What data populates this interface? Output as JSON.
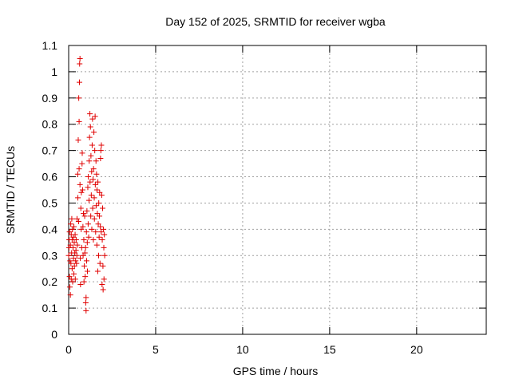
{
  "chart_data": {
    "type": "scatter",
    "title": "Day 152 of 2025, SRMTID for receiver wgba",
    "xlabel": "GPS time / hours",
    "ylabel": "SRMTID / TECUs",
    "xlim": [
      0,
      24
    ],
    "ylim": [
      0,
      1.1
    ],
    "xticks": [
      0,
      5,
      10,
      15,
      20
    ],
    "xtick_labels": [
      "0",
      "5",
      "10",
      "15",
      "20"
    ],
    "yticks": [
      0,
      0.1,
      0.2,
      0.3,
      0.4,
      0.5,
      0.6,
      0.7,
      0.8,
      0.9,
      1.0,
      1.1
    ],
    "ytick_labels": [
      "0",
      "0.1",
      "0.2",
      "0.3",
      "0.4",
      "0.5",
      "0.6",
      "0.7",
      "0.8",
      "0.9",
      "1",
      "1.1"
    ],
    "grid": true,
    "marker": "+",
    "color": "#e00000",
    "series": [
      {
        "name": "SRMTID",
        "points": [
          [
            0.0,
            0.3
          ],
          [
            0.02,
            0.33
          ],
          [
            0.03,
            0.36
          ],
          [
            0.05,
            0.22
          ],
          [
            0.05,
            0.39
          ],
          [
            0.07,
            0.18
          ],
          [
            0.08,
            0.28
          ],
          [
            0.1,
            0.15
          ],
          [
            0.1,
            0.34
          ],
          [
            0.12,
            0.42
          ],
          [
            0.13,
            0.27
          ],
          [
            0.15,
            0.38
          ],
          [
            0.15,
            0.21
          ],
          [
            0.17,
            0.31
          ],
          [
            0.18,
            0.44
          ],
          [
            0.2,
            0.36
          ],
          [
            0.2,
            0.25
          ],
          [
            0.22,
            0.4
          ],
          [
            0.23,
            0.2
          ],
          [
            0.25,
            0.33
          ],
          [
            0.27,
            0.37
          ],
          [
            0.28,
            0.29
          ],
          [
            0.3,
            0.41
          ],
          [
            0.3,
            0.23
          ],
          [
            0.32,
            0.35
          ],
          [
            0.33,
            0.26
          ],
          [
            0.35,
            0.31
          ],
          [
            0.37,
            0.38
          ],
          [
            0.38,
            0.21
          ],
          [
            0.4,
            0.28
          ],
          [
            0.42,
            0.32
          ],
          [
            0.43,
            0.36
          ],
          [
            0.45,
            0.27
          ],
          [
            0.47,
            0.3
          ],
          [
            0.48,
            0.44
          ],
          [
            0.5,
            0.34
          ],
          [
            0.52,
            0.61
          ],
          [
            0.53,
            0.52
          ],
          [
            0.55,
            0.74
          ],
          [
            0.57,
            0.43
          ],
          [
            0.58,
            0.9
          ],
          [
            0.6,
            0.63
          ],
          [
            0.6,
            0.81
          ],
          [
            0.62,
            0.96
          ],
          [
            0.63,
            1.03
          ],
          [
            0.65,
            1.05
          ],
          [
            0.65,
            0.57
          ],
          [
            0.67,
            0.29
          ],
          [
            0.68,
            0.19
          ],
          [
            0.7,
            0.48
          ],
          [
            0.72,
            0.4
          ],
          [
            0.73,
            0.54
          ],
          [
            0.75,
            0.33
          ],
          [
            0.77,
            0.65
          ],
          [
            0.78,
            0.69
          ],
          [
            0.8,
            0.55
          ],
          [
            0.82,
            0.41
          ],
          [
            0.83,
            0.3
          ],
          [
            0.85,
            0.46
          ],
          [
            0.87,
            0.36
          ],
          [
            0.88,
            0.2
          ],
          [
            0.9,
            0.26
          ],
          [
            0.92,
            0.45
          ],
          [
            0.93,
            0.31
          ],
          [
            0.95,
            0.22
          ],
          [
            0.97,
            0.33
          ],
          [
            0.98,
            0.12
          ],
          [
            1.0,
            0.09
          ],
          [
            1.0,
            0.14
          ],
          [
            1.02,
            0.39
          ],
          [
            1.03,
            0.28
          ],
          [
            1.05,
            0.47
          ],
          [
            1.07,
            0.35
          ],
          [
            1.08,
            0.24
          ],
          [
            1.1,
            0.56
          ],
          [
            1.12,
            0.42
          ],
          [
            1.13,
            0.6
          ],
          [
            1.15,
            0.37
          ],
          [
            1.17,
            0.51
          ],
          [
            1.18,
            0.66
          ],
          [
            1.2,
            0.75
          ],
          [
            1.22,
            0.84
          ],
          [
            1.23,
            0.58
          ],
          [
            1.25,
            0.79
          ],
          [
            1.27,
            0.45
          ],
          [
            1.28,
            0.68
          ],
          [
            1.3,
            0.53
          ],
          [
            1.32,
            0.62
          ],
          [
            1.33,
            0.4
          ],
          [
            1.35,
            0.72
          ],
          [
            1.37,
            0.82
          ],
          [
            1.38,
            0.48
          ],
          [
            1.4,
            0.59
          ],
          [
            1.42,
            0.36
          ],
          [
            1.43,
            0.63
          ],
          [
            1.45,
            0.77
          ],
          [
            1.47,
            0.52
          ],
          [
            1.48,
            0.44
          ],
          [
            1.5,
            0.7
          ],
          [
            1.52,
            0.83
          ],
          [
            1.53,
            0.57
          ],
          [
            1.55,
            0.39
          ],
          [
            1.57,
            0.66
          ],
          [
            1.58,
            0.49
          ],
          [
            1.6,
            0.61
          ],
          [
            1.62,
            0.34
          ],
          [
            1.63,
            0.55
          ],
          [
            1.65,
            0.46
          ],
          [
            1.67,
            0.24
          ],
          [
            1.68,
            0.58
          ],
          [
            1.7,
            0.42
          ],
          [
            1.72,
            0.3
          ],
          [
            1.73,
            0.5
          ],
          [
            1.75,
            0.37
          ],
          [
            1.77,
            0.45
          ],
          [
            1.78,
            0.54
          ],
          [
            1.8,
            0.27
          ],
          [
            1.82,
            0.41
          ],
          [
            1.83,
            0.67
          ],
          [
            1.85,
            0.7
          ],
          [
            1.87,
            0.39
          ],
          [
            1.88,
            0.72
          ],
          [
            1.9,
            0.53
          ],
          [
            1.92,
            0.19
          ],
          [
            1.93,
            0.36
          ],
          [
            1.95,
            0.48
          ],
          [
            1.97,
            0.26
          ],
          [
            1.98,
            0.17
          ],
          [
            2.0,
            0.4
          ],
          [
            2.02,
            0.33
          ],
          [
            2.03,
            0.21
          ],
          [
            2.05,
            0.38
          ],
          [
            2.07,
            0.3
          ]
        ]
      }
    ]
  }
}
